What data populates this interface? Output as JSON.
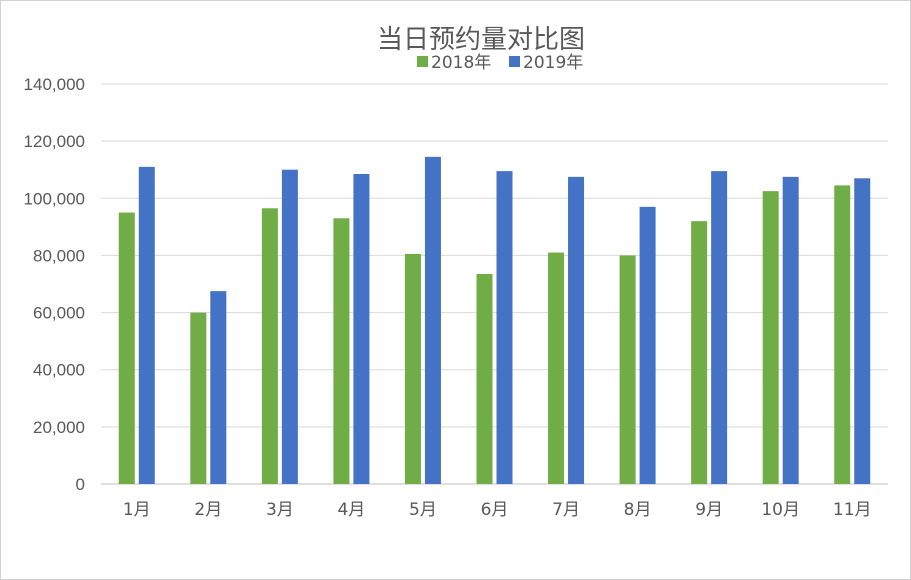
{
  "chart_data": {
    "type": "bar",
    "title": "当日预约量对比图",
    "xlabel": "",
    "ylabel": "",
    "categories": [
      "1月",
      "2月",
      "3月",
      "4月",
      "5月",
      "6月",
      "7月",
      "8月",
      "9月",
      "10月",
      "11月"
    ],
    "series": [
      {
        "name": "2018年",
        "color": "#70ad47",
        "values": [
          95000,
          60000,
          96500,
          93000,
          80500,
          73500,
          81000,
          80000,
          92000,
          102500,
          104500
        ]
      },
      {
        "name": "2019年",
        "color": "#4472c4",
        "values": [
          111000,
          67500,
          110000,
          108500,
          114500,
          109500,
          107500,
          97000,
          109500,
          107500,
          107000
        ]
      }
    ],
    "ylim": [
      0,
      140000
    ],
    "y_ticks": [
      "0",
      "20,000",
      "40,000",
      "60,000",
      "80,000",
      "100,000",
      "120,000",
      "140,000"
    ],
    "grid": true,
    "legend_position": "top"
  }
}
